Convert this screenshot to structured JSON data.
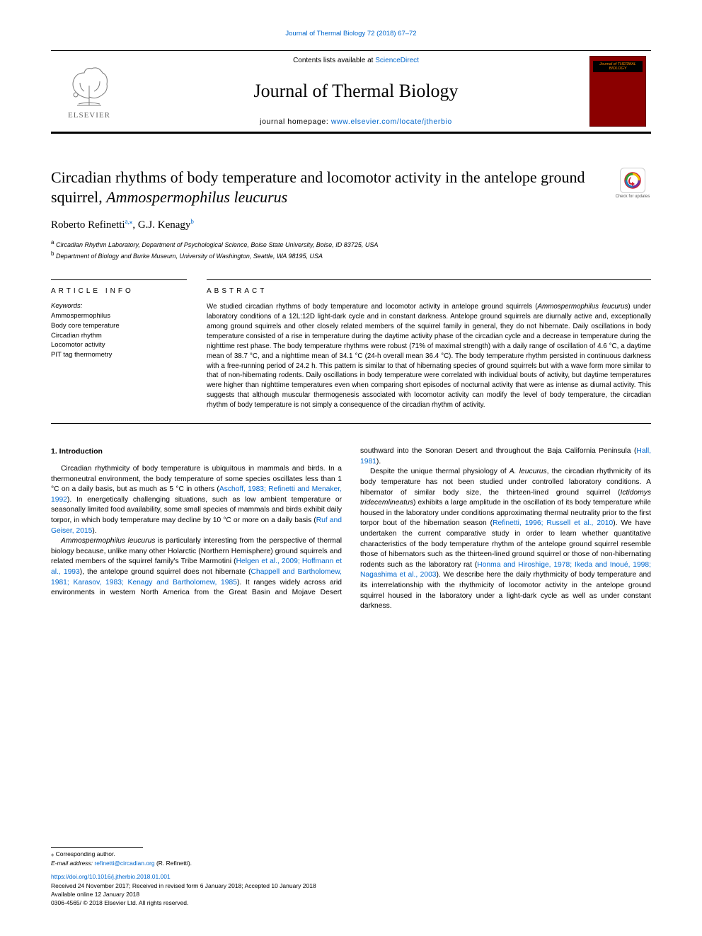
{
  "top_ref": "Journal of Thermal Biology 72 (2018) 67–72",
  "masthead": {
    "contents_text": "Contents lists available at ",
    "contents_link": "ScienceDirect",
    "journal_name": "Journal of Thermal Biology",
    "homepage_prefix": "journal homepage: ",
    "homepage_url": "www.elsevier.com/locate/jtherbio",
    "publisher_name": "ELSEVIER",
    "cover_label": "Journal of\nTHERMAL BIOLOGY"
  },
  "title": "Circadian rhythms of body temperature and locomotor activity in the antelope ground squirrel, ",
  "title_species": "Ammospermophilus leucurus",
  "check_updates_label": "Check for updates",
  "authors_html": "Roberto Refinetti",
  "author1_sup": "a,⁎",
  "author2": ", G.J. Kenagy",
  "author2_sup": "b",
  "affiliations": {
    "a_sup": "a",
    "a": " Circadian Rhythm Laboratory, Department of Psychological Science, Boise State University, Boise, ID 83725, USA",
    "b_sup": "b",
    "b": " Department of Biology and Burke Museum, University of Washington, Seattle, WA 98195, USA"
  },
  "article_info_head": "ARTICLE INFO",
  "abstract_head": "ABSTRACT",
  "keywords_label": "Keywords:",
  "keywords": [
    "Ammospermophilus",
    "Body core temperature",
    "Circadian rhythm",
    "Locomotor activity",
    "PIT tag thermometry"
  ],
  "abstract": "We studied circadian rhythms of body temperature and locomotor activity in antelope ground squirrels (<em>Ammospermophilus leucurus</em>) under laboratory conditions of a 12L:12D light-dark cycle and in constant darkness. Antelope ground squirrels are diurnally active and, exceptionally among ground squirrels and other closely related members of the squirrel family in general, they do not hibernate. Daily oscillations in body temperature consisted of a rise in temperature during the daytime activity phase of the circadian cycle and a decrease in temperature during the nighttime rest phase. The body temperature rhythms were robust (71% of maximal strength) with a daily range of oscillation of 4.6 °C, a daytime mean of 38.7 °C, and a nighttime mean of 34.1 °C (24-h overall mean 36.4 °C). The body temperature rhythm persisted in continuous darkness with a free-running period of 24.2 h. This pattern is similar to that of hibernating species of ground squirrels but with a wave form more similar to that of non-hibernating rodents. Daily oscillations in body temperature were correlated with individual bouts of activity, but daytime temperatures were higher than nighttime temperatures even when comparing short episodes of nocturnal activity that were as intense as diurnal activity. This suggests that although muscular thermogenesis associated with locomotor activity can modify the level of body temperature, the circadian rhythm of body temperature is not simply a consequence of the circadian rhythm of activity.",
  "intro_head": "1. Introduction",
  "intro_p1": "Circadian rhythmicity of body temperature is ubiquitous in mammals and birds. In a thermoneutral environment, the body temperature of some species oscillates less than 1 °C on a daily basis, but as much as 5 °C in others (<span class=\"ref\">Aschoff, 1983; Refinetti and Menaker, 1992</span>). In energetically challenging situations, such as low ambient temperature or seasonally limited food availability, some small species of mammals and birds exhibit daily torpor, in which body temperature may decline by 10 °C or more on a daily basis (<span class=\"ref\">Ruf and Geiser, 2015</span>).",
  "intro_p2": "<em>Ammospermophilus leucurus</em> is particularly interesting from the perspective of thermal biology because, unlike many other Holarctic (Northern Hemisphere) ground squirrels and related members of the squirrel family's Tribe Marmotini (<span class=\"ref\">Helgen et al., 2009; Hoffmann et al., 1993</span>), the antelope ground squirrel does not hibernate (<span class=\"ref\">Chappell and Bartholomew, 1981; Karasov, 1983; Kenagy and Bartholomew, 1985</span>). It ranges widely across arid environments in western North America from the Great Basin and Mojave Desert southward into the Sonoran Desert and throughout the Baja California Peninsula (<span class=\"ref\">Hall, 1981</span>).",
  "intro_p3": "Despite the unique thermal physiology of <em>A. leucurus</em>, the circadian rhythmicity of its body temperature has not been studied under controlled laboratory conditions. A hibernator of similar body size, the thirteen-lined ground squirrel (<em>Ictidomys tridecemlineatus</em>) exhibits a large amplitude in the oscillation of its body temperature while housed in the laboratory under conditions approximating thermal neutrality prior to the first torpor bout of the hibernation season (<span class=\"ref\">Refinetti, 1996; Russell et al., 2010</span>). We have undertaken the current comparative study in order to learn whether quantitative characteristics of the body temperature rhythm of the antelope ground squirrel resemble those of hibernators such as the thirteen-lined ground squirrel or those of non-hibernating rodents such as the laboratory rat (<span class=\"ref\">Honma and Hiroshige, 1978; Ikeda and Inoué, 1998; Nagashima et al., 2003</span>). We describe here the daily rhythmicity of body temperature and its interrelationship with the rhythmicity of locomotor activity in the antelope ground squirrel housed in the laboratory under a light-dark cycle as well as under constant darkness.",
  "footer": {
    "corr": "⁎ Corresponding author.",
    "email_label": "E-mail address: ",
    "email": "refinetti@circadian.org",
    "email_author": " (R. Refinetti).",
    "doi": "https://doi.org/10.1016/j.jtherbio.2018.01.001",
    "received": "Received 24 November 2017; Received in revised form 6 January 2018; Accepted 10 January 2018",
    "available": "Available online 12 January 2018",
    "copyright": "0306-4565/ © 2018 Elsevier Ltd. All rights reserved."
  },
  "colors": {
    "link": "#0066cc",
    "cover_bg": "#8b0000",
    "cover_border": "#600000",
    "cover_label_fg": "#ff8800",
    "text": "#000000",
    "bg": "#ffffff"
  }
}
